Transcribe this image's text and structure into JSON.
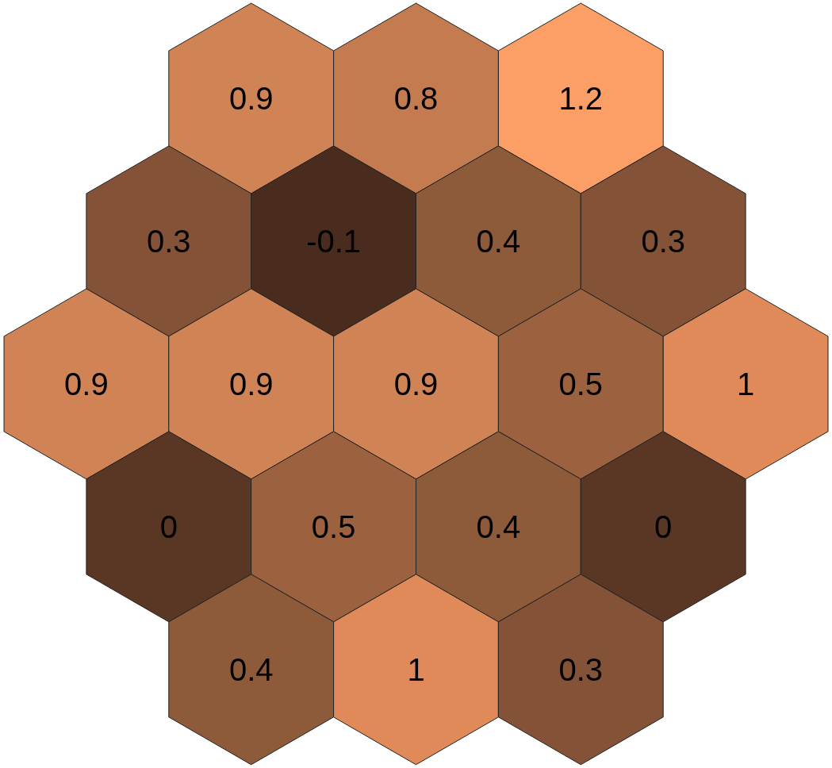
{
  "chart_data": {
    "type": "other",
    "values": [
      0.9,
      0.8,
      1.2,
      0.3,
      -0.1,
      0.4,
      0.3,
      0.9,
      0.9,
      0.9,
      0.5,
      1,
      0,
      0.5,
      0.4,
      0,
      0.4,
      1,
      0.3
    ],
    "colors": [
      "#d08355",
      "#c47b50",
      "#fb9f66",
      "#845236",
      "#4a2c1e",
      "#8d5a3a",
      "#845236",
      "#d08355",
      "#d08355",
      "#d08355",
      "#9c623f",
      "#e08a5a",
      "#5a3724",
      "#9c623f",
      "#8d5a3a",
      "#5a3724",
      "#8d5a3a",
      "#e08a5a",
      "#845236"
    ],
    "data_labels": true
  }
}
